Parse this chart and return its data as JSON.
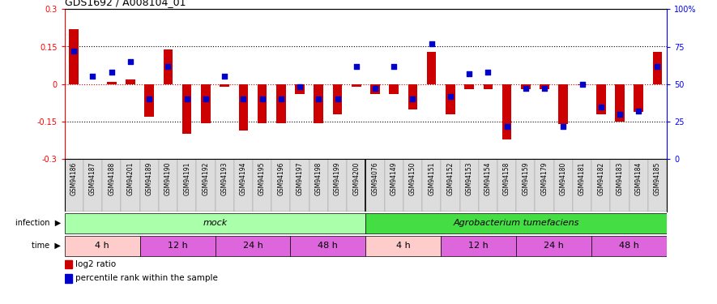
{
  "title": "GDS1692 / A008104_01",
  "samples": [
    "GSM94186",
    "GSM94187",
    "GSM94188",
    "GSM94201",
    "GSM94189",
    "GSM94190",
    "GSM94191",
    "GSM94192",
    "GSM94193",
    "GSM94194",
    "GSM94195",
    "GSM94196",
    "GSM94197",
    "GSM94198",
    "GSM94199",
    "GSM94200",
    "GSM94076",
    "GSM94149",
    "GSM94150",
    "GSM94151",
    "GSM94152",
    "GSM94153",
    "GSM94154",
    "GSM94158",
    "GSM94159",
    "GSM94179",
    "GSM94180",
    "GSM94181",
    "GSM94182",
    "GSM94183",
    "GSM94184",
    "GSM94185"
  ],
  "log2_ratio": [
    0.22,
    0.0,
    0.01,
    0.02,
    -0.13,
    0.14,
    -0.2,
    -0.155,
    -0.01,
    -0.185,
    -0.155,
    -0.155,
    -0.04,
    -0.155,
    -0.12,
    -0.01,
    -0.04,
    -0.04,
    -0.1,
    0.13,
    -0.12,
    -0.02,
    -0.02,
    -0.22,
    -0.02,
    -0.02,
    -0.16,
    -0.005,
    -0.12,
    -0.15,
    -0.11,
    0.13
  ],
  "percentile": [
    72,
    55,
    58,
    65,
    40,
    62,
    40,
    40,
    55,
    40,
    40,
    40,
    48,
    40,
    40,
    62,
    47,
    62,
    40,
    77,
    42,
    57,
    58,
    22,
    47,
    47,
    22,
    50,
    35,
    30,
    32,
    62
  ],
  "ylim_left": [
    -0.3,
    0.3
  ],
  "ylim_right": [
    0,
    100
  ],
  "yticks_left": [
    -0.3,
    -0.15,
    0,
    0.15,
    0.3
  ],
  "yticks_right": [
    0,
    25,
    50,
    75,
    100
  ],
  "bar_color": "#CC0000",
  "dot_color": "#0000CC",
  "zero_line_color": "#CC0000",
  "grid_color": "#000000",
  "bg_color": "#FFFFFF",
  "mock_color": "#AAFFAA",
  "agro_color": "#44DD44",
  "time_4h_color": "#FFCCCC",
  "time_other_color": "#DD66DD",
  "xticklabel_bg": "#DDDDDD",
  "mock_split": 15.5,
  "n_samples": 32,
  "infection_label": "infection",
  "time_label": "time",
  "mock_label": "mock",
  "agro_label": "Agrobacterium tumefaciens",
  "time_labels": [
    "4 h",
    "12 h",
    "24 h",
    "48 h",
    "4 h",
    "12 h",
    "24 h",
    "48 h"
  ],
  "time_ranges": [
    [
      0,
      4
    ],
    [
      4,
      8
    ],
    [
      8,
      12
    ],
    [
      12,
      16
    ],
    [
      16,
      20
    ],
    [
      20,
      24
    ],
    [
      24,
      28
    ],
    [
      28,
      32
    ]
  ],
  "time_4h_indices": [
    0,
    4
  ],
  "legend_bar_label": "log2 ratio",
  "legend_dot_label": "percentile rank within the sample"
}
